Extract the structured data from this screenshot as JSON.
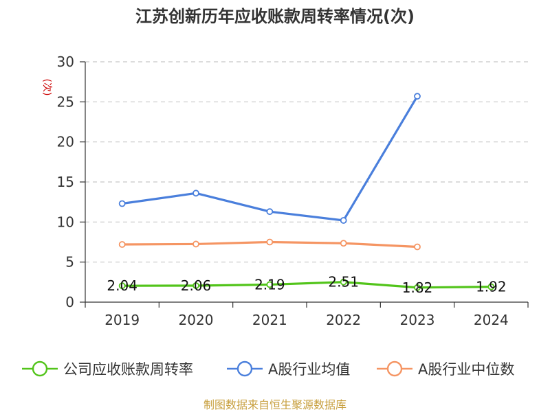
{
  "chart_data": {
    "type": "line",
    "title": "江苏创新历年应收账款周转率情况(次)",
    "ylabel": "(次)",
    "categories": [
      "2019",
      "2020",
      "2021",
      "2022",
      "2023",
      "2024"
    ],
    "ylim": [
      0,
      30
    ],
    "yticks": [
      "0",
      "5",
      "10",
      "15",
      "20",
      "25",
      "30"
    ],
    "grid": true,
    "legend_position": "bottom",
    "series": [
      {
        "name": "公司应收账款周转率",
        "color": "#52c41a",
        "values": [
          2.04,
          2.06,
          2.19,
          2.51,
          1.82,
          1.92
        ],
        "labels": [
          "2.04",
          "2.06",
          "2.19",
          "2.51",
          "1.82",
          "1.92"
        ]
      },
      {
        "name": "A股行业均值",
        "color": "#4a7fdc",
        "values": [
          12.3,
          13.6,
          11.3,
          10.2,
          25.7,
          null
        ]
      },
      {
        "name": "A股行业中位数",
        "color": "#f59563",
        "values": [
          7.2,
          7.25,
          7.5,
          7.35,
          6.9,
          null
        ]
      }
    ],
    "source": "制图数据来自恒生聚源数据库",
    "source_color": "#c8a040"
  }
}
